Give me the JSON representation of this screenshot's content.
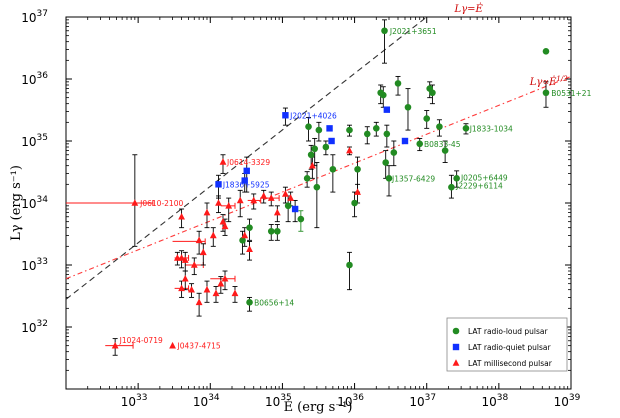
{
  "chart_data": {
    "type": "scatter",
    "x_scale": "log",
    "y_scale": "log",
    "xlim": [
      1e+32,
      1e+39
    ],
    "ylim": [
      1e+31,
      1e+37
    ],
    "xlabel": "Ė  (erg s⁻¹)",
    "ylabel": "Lγ  (erg s⁻¹)",
    "x_ticks": [
      {
        "value": 1e+33,
        "base": "10",
        "exp": "33"
      },
      {
        "value": 1e+34,
        "base": "10",
        "exp": "34"
      },
      {
        "value": 1e+35,
        "base": "10",
        "exp": "35"
      },
      {
        "value": 1e+36,
        "base": "10",
        "exp": "36"
      },
      {
        "value": 1e+37,
        "base": "10",
        "exp": "37"
      },
      {
        "value": 1e+38,
        "base": "10",
        "exp": "38"
      },
      {
        "value": 1e+39,
        "base": "10",
        "exp": "39"
      }
    ],
    "y_ticks": [
      {
        "value": 1e+32,
        "base": "10",
        "exp": "32"
      },
      {
        "value": 1e+33,
        "base": "10",
        "exp": "33"
      },
      {
        "value": 1e+34,
        "base": "10",
        "exp": "34"
      },
      {
        "value": 1e+35,
        "base": "10",
        "exp": "35"
      },
      {
        "value": 1e+36,
        "base": "10",
        "exp": "36"
      },
      {
        "value": 1e+37,
        "base": "10",
        "exp": "37"
      }
    ],
    "lines": [
      {
        "label": "Lγ=Ė",
        "style": "dashed",
        "color": "#333333",
        "x": [
          1e+32,
          1e+37
        ],
        "y": [
          2.8e+32,
          1e+37
        ]
      },
      {
        "label": "Lγ∝Ė^1/2",
        "style": "dashdot",
        "color": "#ff3b3b",
        "x": [
          1e+32,
          1e+39
        ],
        "y": [
          6e+32,
          1.1e+36
        ]
      }
    ],
    "line_labels": [
      {
        "text": "Lγ=Ė",
        "x": 6e+37,
        "y": 1.2e+37,
        "color": "#cc0000"
      },
      {
        "text": "Lγ∝Ė^1/2",
        "x": 9e+38,
        "y": 8e+35,
        "color": "#cc0000"
      }
    ],
    "legend": {
      "position": "bottom-right",
      "entries": [
        {
          "label": "LAT radio-loud pulsar",
          "marker": "circle",
          "color": "#228b22"
        },
        {
          "label": "LAT radio-quiet pulsar",
          "marker": "square",
          "color": "#1030ff"
        },
        {
          "label": "LAT millisecond pulsar",
          "marker": "triangle",
          "color": "#ff1a1a"
        }
      ]
    },
    "colors": {
      "radio_loud": "#228b22",
      "radio_quiet": "#1030ff",
      "msp": "#ff1a1a",
      "errorbar": "#000000"
    },
    "series": [
      {
        "name": "LAT radio-loud pulsar",
        "marker": "circle",
        "color": "#228b22",
        "points": [
          [
            2.6e+36,
            6e+36,
            1.8e+36,
            9e+36
          ],
          [
            4.5e+38,
            2.8e+36,
            0,
            0
          ],
          [
            4.5e+38,
            6e+35,
            3.5e+35,
            9e+35
          ],
          [
            3.5e+37,
            1.6e+35,
            1.3e+35,
            1.9e+35
          ],
          [
            1.2e+37,
            6e+35,
            4e+35,
            8e+35
          ],
          [
            1.1e+37,
            7e+35,
            5e+35,
            9e+35
          ],
          [
            1e+37,
            2.3e+35,
            1.6e+35,
            3.1e+35
          ],
          [
            1.5e+37,
            1.7e+35,
            1.2e+35,
            2.2e+35
          ],
          [
            1.8e+37,
            7e+34,
            4.5e+34,
            1e+35
          ],
          [
            2.2e+37,
            1.8e+34,
            1.2e+34,
            2.8e+34
          ],
          [
            2.6e+37,
            2.5e+34,
            1.8e+34,
            3.3e+34
          ],
          [
            8e+36,
            9e+34,
            7e+34,
            1.1e+35
          ],
          [
            5.5e+36,
            3.5e+35,
            1.5e+35,
            7e+35
          ],
          [
            4e+36,
            8.5e+35,
            5.5e+35,
            1.1e+36
          ],
          [
            3.5e+36,
            6.5e+34,
            4e+34,
            1e+35
          ],
          [
            3e+36,
            2.5e+34,
            1.3e+34,
            4e+34
          ],
          [
            2.8e+36,
            1.3e+35,
            8e+34,
            1.8e+35
          ],
          [
            2.7e+36,
            4.5e+34,
            2.5e+34,
            7e+34
          ],
          [
            2.5e+36,
            5.5e+35,
            3.5e+35,
            7.5e+35
          ],
          [
            2.3e+36,
            6e+35,
            4e+35,
            8e+35
          ],
          [
            2e+36,
            1.6e+35,
            1.2e+35,
            2e+35
          ],
          [
            1.5e+36,
            1.3e+35,
            9e+34,
            1.7e+35
          ],
          [
            1.1e+36,
            3.5e+34,
            1.5e+34,
            5.5e+34
          ],
          [
            1e+36,
            1e+34,
            6e+33,
            1.5e+34
          ],
          [
            8.5e+35,
            1.5e+35,
            1.2e+35,
            1.8e+35
          ],
          [
            8.5e+35,
            1e+33,
            4e+32,
            1.6e+33
          ],
          [
            5e+35,
            3.5e+34,
            1.5e+34,
            6e+34
          ],
          [
            4e+35,
            8e+34,
            6e+34,
            1e+35
          ],
          [
            3.2e+35,
            1.5e+35,
            1e+35,
            2e+35
          ],
          [
            2.8e+35,
            7.5e+34,
            4e+34,
            1.1e+35
          ],
          [
            2.5e+35,
            6e+34,
            3.5e+34,
            8.5e+34
          ],
          [
            2.3e+35,
            1.7e+35,
            1e+35,
            2.4e+35
          ],
          [
            2.2e+35,
            2.5e+34,
            1.8e+34,
            3.2e+34
          ],
          [
            1.8e+35,
            5.5e+33,
            3.5e+33,
            7.5e+33
          ],
          [
            1.2e+35,
            9e+33,
            5e+33,
            1.3e+34
          ],
          [
            8.5e+34,
            3.5e+33,
            2.5e+33,
            4.5e+33
          ],
          [
            7e+34,
            3.5e+33,
            2.5e+33,
            4.5e+33
          ],
          [
            3.5e+34,
            2.5e+32,
            1.8e+32,
            3e+32
          ],
          [
            3.5e+34,
            4e+33,
            2.5e+33,
            5.5e+33
          ],
          [
            2.8e+34,
            2.5e+33,
            1.5e+33,
            3.5e+33
          ],
          [
            3e+35,
            1.8e+34,
            4e+33,
            4.5e+34
          ]
        ]
      },
      {
        "name": "LAT radio-quiet pulsar",
        "marker": "square",
        "color": "#1030ff",
        "points": [
          [
            1.1e+35,
            2.6e+35,
            1.8e+35,
            3.4e+35
          ],
          [
            4.5e+35,
            1.6e+35,
            0,
            0
          ],
          [
            4.8e+35,
            1e+35,
            0,
            0
          ],
          [
            2.8e+36,
            3.2e+35,
            0,
            0
          ],
          [
            5e+36,
            1e+35,
            0,
            0
          ],
          [
            1.3e+34,
            2e+34,
            1.2e+34,
            2.8e+34
          ],
          [
            3.2e+34,
            3.3e+34,
            1.5e+34,
            5.5e+34
          ],
          [
            3e+34,
            2.3e+34,
            1.5e+34,
            3e+34
          ],
          [
            1.5e+35,
            8e+33,
            5e+33,
            1.1e+34
          ]
        ]
      },
      {
        "name": "LAT millisecond pulsar",
        "marker": "triangle",
        "color": "#ff1a1a",
        "points": [
          [
            4.8e+32,
            5e+31,
            3.5e+31,
            6.5e+31
          ],
          [
            3e+33,
            5e+31,
            0,
            0
          ],
          [
            9e+32,
            1e+34,
            2e+33,
            6e+34
          ],
          [
            1.5e+34,
            4.6e+34,
            3e+34,
            6e+34
          ],
          [
            1.3e+34,
            1e+34,
            7e+33,
            1.3e+34
          ],
          [
            2.6e+34,
            1.1e+34,
            6e+33,
            1.6e+34
          ],
          [
            1.8e+34,
            9e+33,
            5e+33,
            1.2e+34
          ],
          [
            1.6e+34,
            4.2e+33,
            3e+33,
            5.5e+33
          ],
          [
            1.5e+34,
            5e+33,
            3.5e+33,
            6.5e+33
          ],
          [
            9e+33,
            7e+33,
            4e+33,
            1e+34
          ],
          [
            4e+33,
            6e+33,
            4e+33,
            8e+33
          ],
          [
            1.1e+34,
            3e+33,
            2e+33,
            4e+33
          ],
          [
            8e+33,
            1.6e+33,
            1e+33,
            2.2e+33
          ],
          [
            7e+33,
            2.5e+33,
            1.5e+33,
            3.5e+33
          ],
          [
            4e+33,
            1.3e+33,
            9e+32,
            1.7e+33
          ],
          [
            4.5e+33,
            1.2e+33,
            8e+32,
            1.6e+33
          ],
          [
            6e+33,
            1e+33,
            7e+32,
            1.3e+33
          ],
          [
            4.5e+33,
            6e+32,
            4e+32,
            8e+32
          ],
          [
            5.5e+33,
            4e+32,
            3e+32,
            5e+32
          ],
          [
            4e+33,
            4.2e+32,
            3e+32,
            5.5e+32
          ],
          [
            7e+33,
            2.5e+32,
            1.5e+32,
            3.5e+32
          ],
          [
            9e+33,
            4e+32,
            2.5e+32,
            5.5e+32
          ],
          [
            1.2e+34,
            3.5e+32,
            2.5e+32,
            4.5e+32
          ],
          [
            1.6e+34,
            6e+32,
            4e+32,
            8e+32
          ],
          [
            1.4e+34,
            5e+32,
            3.5e+32,
            6.5e+32
          ],
          [
            2.2e+34,
            3.5e+32,
            2.5e+32,
            4.5e+32
          ],
          [
            3e+34,
            3e+33,
            2e+33,
            4e+33
          ],
          [
            3.5e+34,
            1.8e+33,
            1.2e+33,
            2.4e+33
          ],
          [
            4e+34,
            1.1e+34,
            8e+33,
            1.4e+34
          ],
          [
            5.5e+34,
            1.3e+34,
            1e+34,
            1.6e+34
          ],
          [
            7e+34,
            1.2e+34,
            9e+33,
            1.5e+34
          ],
          [
            8.5e+34,
            7e+33,
            5e+33,
            9e+33
          ],
          [
            1.1e+35,
            1.4e+34,
            1e+34,
            1.8e+34
          ],
          [
            1.3e+35,
            1.2e+34,
            9e+33,
            1.5e+34
          ],
          [
            2.6e+35,
            4e+34,
            2.5e+34,
            5.5e+34
          ],
          [
            8.5e+35,
            7e+34,
            6e+34,
            8e+34
          ],
          [
            1.1e+36,
            1.5e+34,
            1e+34,
            2e+34
          ],
          [
            3.5e+33,
            1.3e+33,
            1e+33,
            1.6e+33
          ]
        ]
      }
    ],
    "annotations": [
      {
        "text": "J2021+3651",
        "x": 2.9e+36,
        "y": 6e+36,
        "color": "#228b22"
      },
      {
        "text": "B0531+21",
        "x": 5e+38,
        "y": 6e+35,
        "color": "#228b22"
      },
      {
        "text": "J1833-1034",
        "x": 3.7e+37,
        "y": 1.6e+35,
        "color": "#228b22"
      },
      {
        "text": "J0205+6449",
        "x": 2.8e+37,
        "y": 2.6e+34,
        "color": "#228b22"
      },
      {
        "text": "J2229+6114",
        "x": 2.4e+37,
        "y": 1.9e+34,
        "color": "#228b22"
      },
      {
        "text": "B0833-45",
        "x": 8.6e+36,
        "y": 9e+34,
        "color": "#228b22"
      },
      {
        "text": "J1357-6429",
        "x": 3.1e+36,
        "y": 2.5e+34,
        "color": "#228b22"
      },
      {
        "text": "B0656+14",
        "x": 3.8e+34,
        "y": 2.5e+32,
        "color": "#228b22"
      },
      {
        "text": "J2021+4026",
        "x": 1.2e+35,
        "y": 2.6e+35,
        "color": "#1030ff"
      },
      {
        "text": "J1836+5925",
        "x": 1.4e+34,
        "y": 2e+34,
        "color": "#1030ff"
      },
      {
        "text": "J0614-3329",
        "x": 1.6e+34,
        "y": 4.6e+34,
        "color": "#ff1a1a"
      },
      {
        "text": "J0610-2100",
        "x": 1e+33,
        "y": 1e+34,
        "color": "#ff1a1a"
      },
      {
        "text": "J1024-0719",
        "x": 5.2e+32,
        "y": 6.2e+31,
        "color": "#ff1a1a"
      },
      {
        "text": "J0437-4715",
        "x": 3.3e+33,
        "y": 5e+31,
        "color": "#ff1a1a"
      }
    ],
    "x_error_bars": [
      {
        "x": 9e+32,
        "y": 1e+34,
        "xlo": 1e+32,
        "xhi": 1.6e+33,
        "color": "#ff1a1a"
      },
      {
        "x": 4.8e+32,
        "y": 5e+31,
        "xlo": 3.5e+32,
        "xhi": 8.5e+32,
        "color": "#ff1a1a"
      },
      {
        "x": 4e+33,
        "y": 2.4e+33,
        "xlo": 3e+33,
        "xhi": 8.5e+33,
        "color": "#ff1a1a"
      },
      {
        "x": 4e+33,
        "y": 1.3e+33,
        "xlo": 3.2e+33,
        "xhi": 5e+33,
        "color": "#ff1a1a"
      },
      {
        "x": 4e+33,
        "y": 4.2e+32,
        "xlo": 3.2e+33,
        "xhi": 5e+33,
        "color": "#ff1a1a"
      },
      {
        "x": 1.6e+34,
        "y": 6e+32,
        "xlo": 1e+34,
        "xhi": 2.2e+34,
        "color": "#ff1a1a"
      },
      {
        "x": 6e+33,
        "y": 1e+33,
        "xlo": 4.5e+33,
        "xhi": 8e+33,
        "color": "#ff1a1a"
      },
      {
        "x": 1.8e+34,
        "y": 9e+33,
        "xlo": 1.4e+34,
        "xhi": 2.2e+34,
        "color": "#ff1a1a"
      },
      {
        "x": 7e+34,
        "y": 1.2e+34,
        "xlo": 5.5e+34,
        "xhi": 9e+34,
        "color": "#ff1a1a"
      },
      {
        "x": 4e+34,
        "y": 1.1e+34,
        "xlo": 3.3e+34,
        "xhi": 5e+34,
        "color": "#ff1a1a"
      }
    ]
  }
}
